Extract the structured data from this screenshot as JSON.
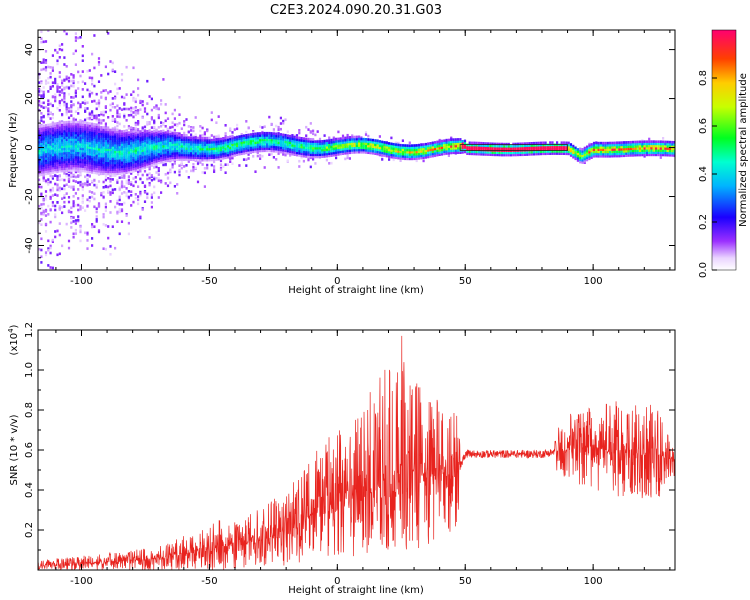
{
  "title": "C2E3.2024.090.20.31.G03",
  "colors": {
    "snr_line": "#e8231e",
    "axis": "#000000"
  },
  "chart_data": [
    {
      "type": "heatmap",
      "xlabel": "Height of straight line (km)",
      "ylabel": "Frequency (Hz)",
      "xlim": [
        -117,
        132
      ],
      "ylim": [
        -50,
        48
      ],
      "x_ticks": [
        -100,
        -50,
        0,
        50,
        100
      ],
      "x_tick_labels": [
        "-100",
        "-50",
        "0",
        "50",
        "100"
      ],
      "y_ticks": [
        -40,
        -20,
        0,
        20,
        40
      ],
      "y_tick_labels": [
        "-40",
        "-20",
        "0",
        "20",
        "40"
      ],
      "colorbar": {
        "label": "Normalized spectral amplitude",
        "range": [
          0,
          1
        ],
        "ticks": [
          0.0,
          0.2,
          0.4,
          0.6,
          0.8
        ],
        "tick_labels": [
          "0.0",
          "0.2",
          "0.4",
          "0.6",
          "0.8"
        ],
        "colormap": [
          "#ffffff",
          "#d8b4f8",
          "#7a00ff",
          "#0000ff",
          "#00d8ff",
          "#00ff40",
          "#ffff00",
          "#ff8000",
          "#ff0000",
          "#ff0078"
        ]
      },
      "series": [
        {
          "name": "",
          "x": [
            -115,
            -100,
            -80,
            -60,
            -40,
            -20,
            0,
            20,
            40,
            48,
            50,
            90,
            95,
            100,
            132
          ],
          "center_freq": [
            0,
            0,
            0,
            0,
            2,
            2,
            1,
            0,
            0,
            0,
            0,
            0,
            -3,
            0,
            0
          ],
          "peak_amplitude": [
            0.45,
            0.45,
            0.5,
            0.5,
            0.6,
            0.55,
            0.7,
            0.8,
            0.85,
            0.9,
            1.0,
            1.0,
            0.7,
            0.9,
            0.9
          ],
          "spread_hz": [
            45,
            35,
            25,
            12,
            8,
            8,
            5,
            4,
            3,
            3,
            1,
            1,
            3,
            3,
            3
          ]
        }
      ]
    },
    {
      "type": "line",
      "xlabel": "Height of straight line (km)",
      "ylabel": "SNR (10 * v/v)",
      "scale_label": "(x10",
      "scale_exp": "4",
      "scale_close": ")",
      "xlim": [
        -117,
        132
      ],
      "ylim": [
        0,
        1.2
      ],
      "x_ticks": [
        -100,
        -50,
        0,
        50,
        100
      ],
      "x_tick_labels": [
        "-100",
        "-50",
        "0",
        "50",
        "100"
      ],
      "y_ticks": [
        0.2,
        0.4,
        0.6,
        0.8,
        1.0,
        1.2
      ],
      "y_tick_labels": [
        "0.2",
        "0.4",
        "0.6",
        "0.8",
        "1.0",
        "1.2"
      ],
      "series": [
        {
          "name": "",
          "x": [
            -117,
            -100,
            -80,
            -70,
            -60,
            -50,
            -40,
            -30,
            -20,
            -10,
            0,
            10,
            20,
            25,
            30,
            40,
            48,
            50,
            60,
            70,
            80,
            90,
            100,
            110,
            120,
            125,
            132
          ],
          "envelope_low": [
            0.0,
            0.0,
            0.0,
            0.0,
            0.0,
            0.0,
            0.0,
            0.02,
            0.02,
            0.05,
            0.05,
            0.08,
            0.1,
            0.1,
            0.1,
            0.15,
            0.2,
            0.55,
            0.55,
            0.55,
            0.55,
            0.45,
            0.4,
            0.35,
            0.35,
            0.35,
            0.45
          ],
          "envelope_high": [
            0.05,
            0.07,
            0.1,
            0.12,
            0.18,
            0.22,
            0.3,
            0.32,
            0.4,
            0.6,
            0.7,
            0.85,
            1.05,
            1.2,
            0.95,
            0.85,
            0.8,
            0.6,
            0.6,
            0.6,
            0.62,
            0.78,
            0.82,
            0.85,
            0.85,
            0.82,
            0.6
          ],
          "mean": [
            0.02,
            0.03,
            0.05,
            0.06,
            0.08,
            0.1,
            0.13,
            0.15,
            0.18,
            0.28,
            0.35,
            0.4,
            0.45,
            0.5,
            0.48,
            0.5,
            0.52,
            0.58,
            0.58,
            0.58,
            0.58,
            0.6,
            0.62,
            0.58,
            0.6,
            0.58,
            0.55
          ]
        }
      ]
    }
  ]
}
